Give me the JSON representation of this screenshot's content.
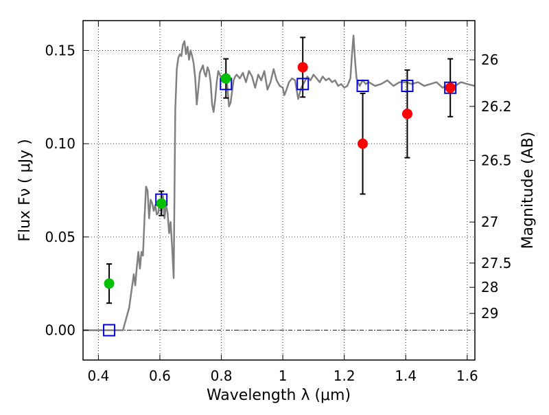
{
  "chart_data": {
    "type": "scatter",
    "xlabel": "Wavelength  λ (μm)",
    "ylabel": "Flux  Fν  ( μJy )",
    "y2label": "Magnitude (AB)",
    "xlim": [
      0.35,
      1.625
    ],
    "ylim": [
      -0.016,
      0.166
    ],
    "xticks": [
      0.4,
      0.6,
      0.8,
      1.0,
      1.2,
      1.4,
      1.6
    ],
    "xtick_labels": [
      "0.4",
      "0.6",
      "0.8",
      "1",
      "1.2",
      "1.4",
      "1.6"
    ],
    "yticks": [
      0.0,
      0.05,
      0.1,
      0.15
    ],
    "ytick_labels": [
      "0.00",
      "0.05",
      "0.10",
      "0.15"
    ],
    "right_ticks": [
      {
        "label": "26",
        "flux": 0.145
      },
      {
        "label": "26.2",
        "flux": 0.12
      },
      {
        "label": "26.5",
        "flux": 0.091
      },
      {
        "label": "27",
        "flux": 0.058
      },
      {
        "label": "27.5",
        "flux": 0.036
      },
      {
        "label": "28",
        "flux": 0.023
      },
      {
        "label": "29",
        "flux": 0.009
      }
    ],
    "grid": true,
    "zero_line": true,
    "colors": {
      "model": "#808080",
      "green": "#00c000",
      "red": "#ff0000",
      "squares": "#0000dd",
      "errorbars": "#000000"
    },
    "series": [
      {
        "kind": "line",
        "x": [
          0.35,
          0.48,
          0.5,
          0.51,
          0.515,
          0.52,
          0.525,
          0.53,
          0.535,
          0.54,
          0.545,
          0.55,
          0.555,
          0.56,
          0.565,
          0.57,
          0.575,
          0.58,
          0.585,
          0.59,
          0.595,
          0.6,
          0.605,
          0.61,
          0.615,
          0.62,
          0.625,
          0.63,
          0.635,
          0.64,
          0.645,
          0.65,
          0.655,
          0.66,
          0.665,
          0.67,
          0.675,
          0.68,
          0.685,
          0.69,
          0.695,
          0.7,
          0.705,
          0.71,
          0.715,
          0.72,
          0.725,
          0.73,
          0.735,
          0.74,
          0.745,
          0.75,
          0.755,
          0.76,
          0.765,
          0.77,
          0.775,
          0.78,
          0.785,
          0.79,
          0.795,
          0.8,
          0.805,
          0.81,
          0.815,
          0.82,
          0.825,
          0.83,
          0.835,
          0.84,
          0.845,
          0.85,
          0.86,
          0.87,
          0.88,
          0.89,
          0.9,
          0.91,
          0.92,
          0.93,
          0.94,
          0.95,
          0.96,
          0.97,
          0.98,
          0.99,
          1.0,
          1.005,
          1.01,
          1.02,
          1.03,
          1.04,
          1.05,
          1.06,
          1.07,
          1.08,
          1.09,
          1.1,
          1.11,
          1.12,
          1.13,
          1.14,
          1.15,
          1.16,
          1.17,
          1.18,
          1.19,
          1.2,
          1.21,
          1.22,
          1.225,
          1.23,
          1.235,
          1.24,
          1.25,
          1.26,
          1.27,
          1.28,
          1.3,
          1.32,
          1.34,
          1.36,
          1.38,
          1.4,
          1.42,
          1.44,
          1.46,
          1.48,
          1.5,
          1.52,
          1.54,
          1.56,
          1.58,
          1.6,
          1.625
        ],
        "y": [
          0.0,
          0.0,
          0.012,
          0.024,
          0.03,
          0.024,
          0.034,
          0.042,
          0.033,
          0.042,
          0.04,
          0.06,
          0.077,
          0.075,
          0.06,
          0.07,
          0.068,
          0.064,
          0.067,
          0.062,
          0.063,
          0.07,
          0.062,
          0.072,
          0.06,
          0.067,
          0.063,
          0.052,
          0.058,
          0.044,
          0.028,
          0.118,
          0.14,
          0.146,
          0.148,
          0.147,
          0.153,
          0.155,
          0.148,
          0.152,
          0.145,
          0.15,
          0.147,
          0.143,
          0.135,
          0.121,
          0.129,
          0.138,
          0.14,
          0.142,
          0.138,
          0.136,
          0.141,
          0.139,
          0.133,
          0.121,
          0.117,
          0.124,
          0.133,
          0.139,
          0.137,
          0.135,
          0.133,
          0.136,
          0.138,
          0.13,
          0.12,
          0.122,
          0.128,
          0.134,
          0.136,
          0.137,
          0.135,
          0.138,
          0.133,
          0.139,
          0.136,
          0.13,
          0.137,
          0.134,
          0.139,
          0.129,
          0.133,
          0.14,
          0.134,
          0.131,
          0.13,
          0.126,
          0.128,
          0.133,
          0.135,
          0.134,
          0.124,
          0.13,
          0.133,
          0.136,
          0.134,
          0.137,
          0.135,
          0.133,
          0.136,
          0.134,
          0.135,
          0.133,
          0.134,
          0.131,
          0.132,
          0.13,
          0.131,
          0.135,
          0.148,
          0.158,
          0.145,
          0.135,
          0.131,
          0.134,
          0.132,
          0.133,
          0.131,
          0.132,
          0.134,
          0.131,
          0.133,
          0.133,
          0.132,
          0.133,
          0.131,
          0.132,
          0.133,
          0.13,
          0.132,
          0.131,
          0.133,
          0.132,
          0.131
        ]
      },
      {
        "kind": "points-green",
        "x": [
          0.435,
          0.605,
          0.815
        ],
        "y": [
          0.025,
          0.068,
          0.135
        ],
        "err": [
          0.0105,
          0.0065,
          0.0105
        ]
      },
      {
        "kind": "points-red",
        "x": [
          1.065,
          1.26,
          1.405,
          1.545
        ],
        "y": [
          0.141,
          0.1,
          0.116,
          0.13
        ],
        "err": [
          0.016,
          0.027,
          0.0235,
          0.0155
        ]
      },
      {
        "kind": "squares",
        "x": [
          0.435,
          0.605,
          0.815,
          1.065,
          1.26,
          1.405,
          1.545
        ],
        "y": [
          0.0,
          0.07,
          0.132,
          0.132,
          0.131,
          0.131,
          0.13
        ]
      }
    ]
  }
}
